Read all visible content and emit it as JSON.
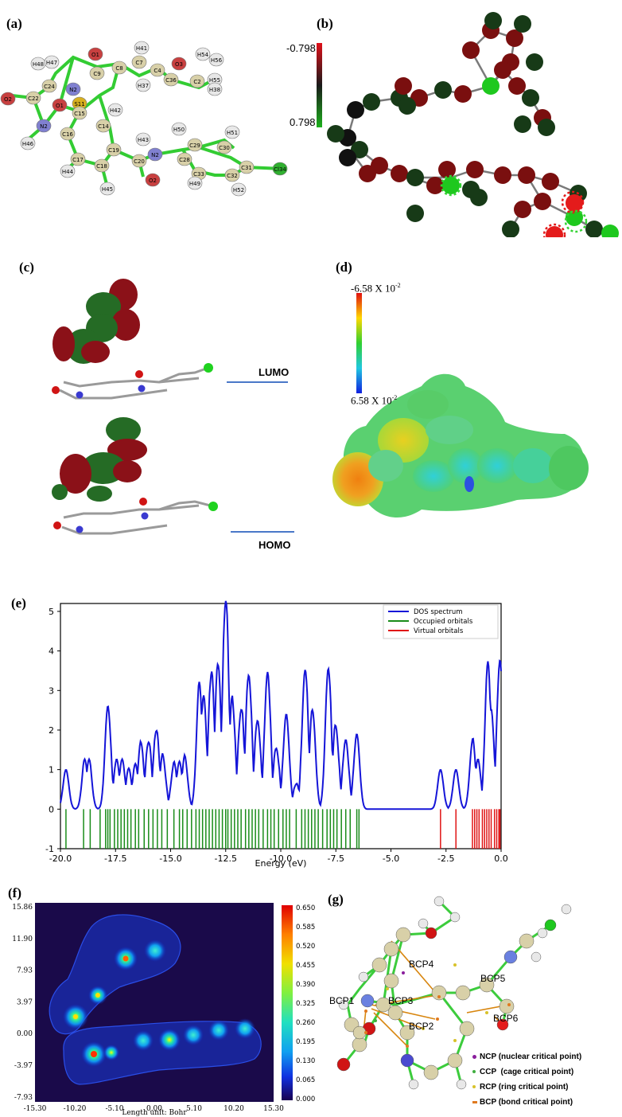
{
  "panels": {
    "a": "(a)",
    "b": "(b)",
    "c": "(c)",
    "d": "(d)",
    "e": "(e)",
    "f": "(f)",
    "g": "(g)"
  },
  "panel_a": {
    "atom_labels": [
      "O1",
      "C9",
      "C8",
      "C7",
      "H41",
      "C4",
      "O3",
      "H54",
      "H56",
      "C22",
      "C24",
      "H48",
      "H47",
      "N2",
      "S11",
      "C15",
      "C14",
      "H42",
      "H37",
      "C36",
      "C2",
      "H55",
      "H38",
      "O2",
      "O1",
      "N2",
      "H46",
      "C16",
      "C17",
      "C18",
      "C19",
      "C20",
      "H43",
      "N2",
      "H50",
      "C29",
      "C30",
      "H51",
      "C28",
      "C31",
      "C33",
      "C32",
      "Cl34",
      "H44",
      "H45",
      "O2",
      "H49",
      "H52"
    ]
  },
  "panel_b": {
    "scale_max_label": "-0.798",
    "scale_min_label": "0.798",
    "colors": {
      "top": "#e0101a",
      "mid": "#1a1a1a",
      "bottom": "#1db01d"
    }
  },
  "panel_c": {
    "lumo_label": "LUMO",
    "homo_label": "HOMO",
    "level_line_color": "#4a78c8"
  },
  "panel_d": {
    "scale_top_label": "-6.58 X 10",
    "scale_top_exp": "-2",
    "scale_bottom_label": "6.58 X 10",
    "scale_bottom_exp": "-2"
  },
  "chart_data": [
    {
      "type": "line",
      "panel": "e",
      "xlabel": "Energy (eV)",
      "ylabel": "",
      "xlim": [
        -20.0,
        0.0
      ],
      "ylim": [
        -1,
        5.2
      ],
      "x_ticks": [
        "-20.0",
        "-17.5",
        "-15.0",
        "-12.5",
        "-10.0",
        "-7.5",
        "-5.0",
        "-2.5",
        "0.0"
      ],
      "y_ticks": [
        "-1",
        "0",
        "1",
        "2",
        "3",
        "4",
        "5"
      ],
      "legend_position": "top-right",
      "series": [
        {
          "name": "DOS spectrum",
          "color": "#1515d8",
          "peaks_x": [
            -19.75,
            -18.9,
            -18.7,
            -17.85,
            -17.45,
            -17.2,
            -16.9,
            -16.6,
            -16.35,
            -16.0,
            -15.65,
            -15.35,
            -14.85,
            -14.6,
            -14.35,
            -13.7,
            -13.5,
            -13.15,
            -12.85,
            -12.5,
            -12.2,
            -11.8,
            -11.45,
            -11.05,
            -10.6,
            -10.2,
            -9.75,
            -9.3,
            -8.9,
            -8.55,
            -7.85,
            -7.5,
            -7.05,
            -6.55,
            -2.75,
            -2.05,
            -1.3,
            -1.05,
            -0.6,
            -0.45,
            -0.05
          ],
          "peaks_y": [
            1.0,
            1.1,
            1.1,
            2.6,
            1.1,
            1.1,
            0.9,
            1.0,
            1.5,
            1.6,
            1.85,
            1.25,
            1.05,
            1.05,
            1.2,
            2.8,
            2.5,
            3.15,
            3.3,
            5.0,
            2.5,
            2.4,
            3.3,
            2.2,
            3.45,
            1.5,
            2.4,
            0.6,
            3.45,
            2.4,
            3.5,
            2.0,
            1.75,
            1.9,
            1.0,
            1.0,
            1.6,
            1.1,
            3.25,
            2.2,
            3.75
          ]
        },
        {
          "name": "Occupied orbitals",
          "color": "#198c19",
          "x": [
            -19.75,
            -18.95,
            -18.65,
            -18.2,
            -17.95,
            -17.85,
            -17.75,
            -17.55,
            -17.4,
            -17.25,
            -17.1,
            -16.95,
            -16.8,
            -16.6,
            -16.45,
            -16.2,
            -16.0,
            -15.8,
            -15.6,
            -15.4,
            -15.15,
            -14.85,
            -14.6,
            -14.45,
            -14.25,
            -14.05,
            -13.85,
            -13.7,
            -13.55,
            -13.4,
            -13.25,
            -13.1,
            -12.95,
            -12.8,
            -12.65,
            -12.5,
            -12.4,
            -12.25,
            -12.1,
            -11.95,
            -11.8,
            -11.6,
            -11.45,
            -11.3,
            -11.15,
            -11.0,
            -10.8,
            -10.6,
            -10.45,
            -10.3,
            -10.1,
            -9.9,
            -9.75,
            -9.6,
            -9.3,
            -9.05,
            -8.9,
            -8.75,
            -8.6,
            -8.45,
            -8.3,
            -8.1,
            -7.9,
            -7.75,
            -7.6,
            -7.45,
            -7.25,
            -7.05,
            -6.85,
            -6.55,
            -6.45
          ]
        },
        {
          "name": "Virtual orbitals",
          "color": "#e01515",
          "x": [
            -2.75,
            -2.05,
            -1.3,
            -1.2,
            -1.1,
            -1.0,
            -0.85,
            -0.75,
            -0.65,
            -0.55,
            -0.45,
            -0.3,
            -0.2,
            -0.1,
            -0.05
          ]
        }
      ]
    },
    {
      "type": "heatmap",
      "panel": "f",
      "xlabel": "Length unit: Bohr",
      "x_ticks": [
        "-15.30",
        "-10.20",
        "-5.10",
        "0.00",
        "5.10",
        "10.20",
        "15.30"
      ],
      "y_ticks": [
        "15.86",
        "11.90",
        "7.93",
        "3.97",
        "0.00",
        "-3.97",
        "-7.93"
      ],
      "colorbar_ticks": [
        "0.650",
        "0.585",
        "0.520",
        "0.455",
        "0.390",
        "0.325",
        "0.260",
        "0.195",
        "0.130",
        "0.065",
        "0.000"
      ],
      "colorbar_range": [
        0.0,
        0.65
      ]
    }
  ],
  "panel_g": {
    "bcp_labels": [
      "BCP1",
      "BCP2",
      "BCP3",
      "BCP4",
      "BCP5",
      "BCP6"
    ],
    "legend": [
      {
        "symbol": "NCP",
        "text": " (nuclear critical point)",
        "color": "#8a1e9c"
      },
      {
        "symbol": "CCP",
        "text": "  (cage critical point)",
        "color": "#3fae3f"
      },
      {
        "symbol": "RCP",
        "text": " (ring critical point)",
        "color": "#d8c22a"
      },
      {
        "symbol": "BCP",
        "text": " (bond critical point)",
        "color": "#e07a20"
      }
    ]
  }
}
